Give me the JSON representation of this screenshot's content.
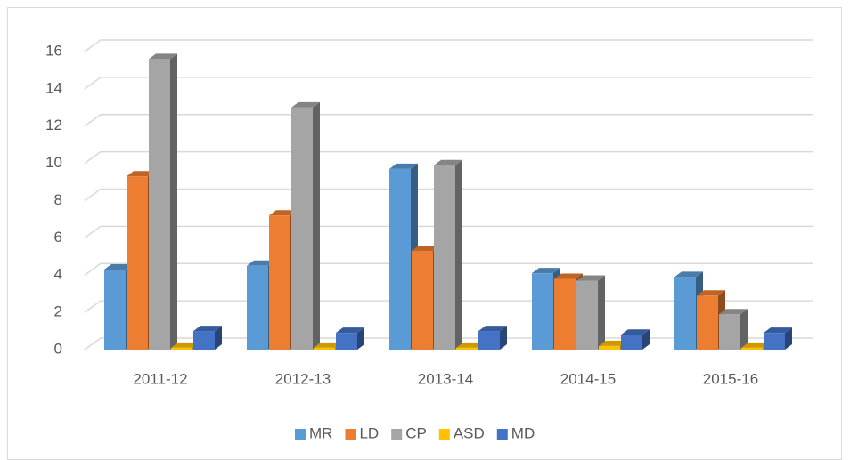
{
  "chart_data": {
    "type": "bar3d",
    "categories": [
      "2011-12",
      "2012-13",
      "2013-14",
      "2014-15",
      "2015-16"
    ],
    "series": [
      {
        "name": "MR",
        "color": "#5b9bd5",
        "values": [
          4.3,
          4.5,
          9.7,
          4.1,
          3.9
        ]
      },
      {
        "name": "LD",
        "color": "#ed7d31",
        "values": [
          9.3,
          7.2,
          5.3,
          3.8,
          2.9
        ]
      },
      {
        "name": "CP",
        "color": "#a5a5a5",
        "values": [
          15.6,
          13.0,
          9.9,
          3.7,
          1.9
        ]
      },
      {
        "name": "ASD",
        "color": "#ffc000",
        "values": [
          0.1,
          0.1,
          0.1,
          0.2,
          0.1
        ]
      },
      {
        "name": "MD",
        "color": "#4472c4",
        "values": [
          1.0,
          0.9,
          1.0,
          0.8,
          0.9
        ]
      }
    ],
    "ylim": [
      0,
      16
    ],
    "yticks": [
      0,
      2,
      4,
      6,
      8,
      10,
      12,
      14,
      16
    ],
    "grid": true,
    "legend": "bottom"
  }
}
